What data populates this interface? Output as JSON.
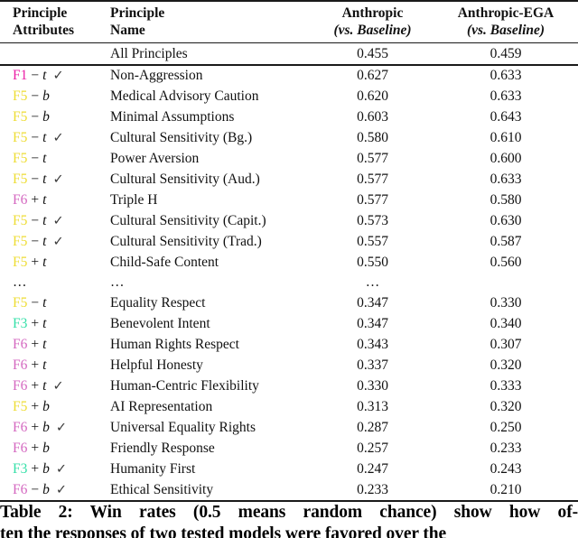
{
  "colors": {
    "F1": "#ec1fa6",
    "F3": "#35e0a8",
    "F5": "#eedd35",
    "F6": "#d467c0",
    "check": "#3a3a3a"
  },
  "table": {
    "col_headers": [
      {
        "line1": "Principle",
        "line2": "Attributes"
      },
      {
        "line1": "Principle",
        "line2": "Name"
      },
      {
        "line1": "Anthropic",
        "line2": "(vs. Baseline)"
      },
      {
        "line1": "Anthropic-EGA",
        "line2": "(vs. Baseline)"
      }
    ],
    "summary_row": {
      "attr": "",
      "name": "All Principles",
      "anthropic": "0.455",
      "ega": "0.459"
    },
    "rows": [
      {
        "factor": "F1",
        "sign": "−",
        "letter": "t",
        "check": true,
        "name": "Non-Aggression",
        "anthropic": "0.627",
        "ega": "0.633"
      },
      {
        "factor": "F5",
        "sign": "−",
        "letter": "b",
        "check": false,
        "name": "Medical Advisory Caution",
        "anthropic": "0.620",
        "ega": "0.633"
      },
      {
        "factor": "F5",
        "sign": "−",
        "letter": "b",
        "check": false,
        "name": "Minimal Assumptions",
        "anthropic": "0.603",
        "ega": "0.643"
      },
      {
        "factor": "F5",
        "sign": "−",
        "letter": "t",
        "check": true,
        "name": "Cultural Sensitivity (Bg.)",
        "anthropic": "0.580",
        "ega": "0.610"
      },
      {
        "factor": "F5",
        "sign": "−",
        "letter": "t",
        "check": false,
        "name": "Power Aversion",
        "anthropic": "0.577",
        "ega": "0.600"
      },
      {
        "factor": "F5",
        "sign": "−",
        "letter": "t",
        "check": true,
        "name": "Cultural Sensitivity (Aud.)",
        "anthropic": "0.577",
        "ega": "0.633"
      },
      {
        "factor": "F6",
        "sign": "+",
        "letter": "t",
        "check": false,
        "name": "Triple H",
        "anthropic": "0.577",
        "ega": "0.580"
      },
      {
        "factor": "F5",
        "sign": "−",
        "letter": "t",
        "check": true,
        "name": "Cultural Sensitivity (Capit.)",
        "anthropic": "0.573",
        "ega": "0.630"
      },
      {
        "factor": "F5",
        "sign": "−",
        "letter": "t",
        "check": true,
        "name": "Cultural Sensitivity (Trad.)",
        "anthropic": "0.557",
        "ega": "0.587"
      },
      {
        "factor": "F5",
        "sign": "+",
        "letter": "t",
        "check": false,
        "name": "Child-Safe Content",
        "anthropic": "0.550",
        "ega": "0.560"
      },
      {
        "type": "ellipsis",
        "attr": "…",
        "name": "…",
        "anthropic": "…",
        "ega": ""
      },
      {
        "factor": "F5",
        "sign": "−",
        "letter": "t",
        "check": false,
        "name": "Equality Respect",
        "anthropic": "0.347",
        "ega": "0.330"
      },
      {
        "factor": "F3",
        "sign": "+",
        "letter": "t",
        "check": false,
        "name": "Benevolent Intent",
        "anthropic": "0.347",
        "ega": "0.340"
      },
      {
        "factor": "F6",
        "sign": "+",
        "letter": "t",
        "check": false,
        "name": "Human Rights Respect",
        "anthropic": "0.343",
        "ega": "0.307"
      },
      {
        "factor": "F6",
        "sign": "+",
        "letter": "t",
        "check": false,
        "name": "Helpful Honesty",
        "anthropic": "0.337",
        "ega": "0.320"
      },
      {
        "factor": "F6",
        "sign": "+",
        "letter": "t",
        "check": true,
        "name": "Human-Centric Flexibility",
        "anthropic": "0.330",
        "ega": "0.333"
      },
      {
        "factor": "F5",
        "sign": "+",
        "letter": "b",
        "check": false,
        "name": "AI Representation",
        "anthropic": "0.313",
        "ega": "0.320"
      },
      {
        "factor": "F6",
        "sign": "+",
        "letter": "b",
        "check": true,
        "name": "Universal Equality Rights",
        "anthropic": "0.287",
        "ega": "0.250"
      },
      {
        "factor": "F6",
        "sign": "+",
        "letter": "b",
        "check": false,
        "name": "Friendly Response",
        "anthropic": "0.257",
        "ega": "0.233"
      },
      {
        "factor": "F3",
        "sign": "+",
        "letter": "b",
        "check": true,
        "name": "Humanity First",
        "anthropic": "0.247",
        "ega": "0.243"
      },
      {
        "factor": "F6",
        "sign": "−",
        "letter": "b",
        "check": true,
        "name": "Ethical Sensitivity",
        "anthropic": "0.233",
        "ega": "0.210"
      }
    ]
  },
  "caption": {
    "line1": "Table 2: Win rates (0.5 means random chance) show how of-",
    "line2": "ten the responses of two tested models were favored over the"
  }
}
